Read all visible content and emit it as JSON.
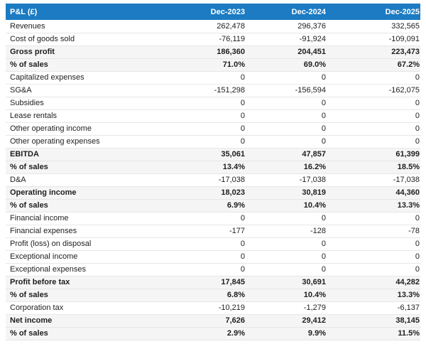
{
  "colors": {
    "header_bg": "#1c7bc2",
    "header_text": "#ffffff",
    "total_row_bg": "#f5f5f5",
    "row_border": "#e7e7e7",
    "text": "#1e1e1e"
  },
  "table": {
    "header": {
      "label": "P&L (£)",
      "columns": [
        "Dec-2023",
        "Dec-2024",
        "Dec-2025"
      ]
    },
    "rows": [
      {
        "label": "Revenues",
        "values": [
          "262,478",
          "296,376",
          "332,565"
        ],
        "style": "normal"
      },
      {
        "label": "Cost of goods sold",
        "values": [
          "-76,119",
          "-91,924",
          "-109,091"
        ],
        "style": "normal"
      },
      {
        "label": "Gross profit",
        "values": [
          "186,360",
          "204,451",
          "223,473"
        ],
        "style": "total"
      },
      {
        "label": "% of sales",
        "values": [
          "71.0%",
          "69.0%",
          "67.2%"
        ],
        "style": "total"
      },
      {
        "label": "Capitalized expenses",
        "values": [
          "0",
          "0",
          "0"
        ],
        "style": "normal"
      },
      {
        "label": "SG&A",
        "values": [
          "-151,298",
          "-156,594",
          "-162,075"
        ],
        "style": "normal"
      },
      {
        "label": "Subsidies",
        "values": [
          "0",
          "0",
          "0"
        ],
        "style": "normal"
      },
      {
        "label": "Lease rentals",
        "values": [
          "0",
          "0",
          "0"
        ],
        "style": "normal"
      },
      {
        "label": "Other operating income",
        "values": [
          "0",
          "0",
          "0"
        ],
        "style": "normal"
      },
      {
        "label": "Other operating expenses",
        "values": [
          "0",
          "0",
          "0"
        ],
        "style": "normal"
      },
      {
        "label": "EBITDA",
        "values": [
          "35,061",
          "47,857",
          "61,399"
        ],
        "style": "total"
      },
      {
        "label": "% of sales",
        "values": [
          "13.4%",
          "16.2%",
          "18.5%"
        ],
        "style": "total"
      },
      {
        "label": "D&A",
        "values": [
          "-17,038",
          "-17,038",
          "-17,038"
        ],
        "style": "normal"
      },
      {
        "label": "Operating income",
        "values": [
          "18,023",
          "30,819",
          "44,360"
        ],
        "style": "total"
      },
      {
        "label": "% of sales",
        "values": [
          "6.9%",
          "10.4%",
          "13.3%"
        ],
        "style": "total"
      },
      {
        "label": "Financial income",
        "values": [
          "0",
          "0",
          "0"
        ],
        "style": "normal"
      },
      {
        "label": "Financial expenses",
        "values": [
          "-177",
          "-128",
          "-78"
        ],
        "style": "normal"
      },
      {
        "label": "Profit (loss) on disposal",
        "values": [
          "0",
          "0",
          "0"
        ],
        "style": "normal"
      },
      {
        "label": "Exceptional income",
        "values": [
          "0",
          "0",
          "0"
        ],
        "style": "normal"
      },
      {
        "label": "Exceptional expenses",
        "values": [
          "0",
          "0",
          "0"
        ],
        "style": "normal"
      },
      {
        "label": "Profit before tax",
        "values": [
          "17,845",
          "30,691",
          "44,282"
        ],
        "style": "total"
      },
      {
        "label": "% of sales",
        "values": [
          "6.8%",
          "10.4%",
          "13.3%"
        ],
        "style": "total"
      },
      {
        "label": "Corporation tax",
        "values": [
          "-10,219",
          "-1,279",
          "-6,137"
        ],
        "style": "normal"
      },
      {
        "label": "Net income",
        "values": [
          "7,626",
          "29,412",
          "38,145"
        ],
        "style": "total"
      },
      {
        "label": "% of sales",
        "values": [
          "2.9%",
          "9.9%",
          "11.5%"
        ],
        "style": "total"
      }
    ]
  },
  "chart_data": {
    "type": "table",
    "title": "P&L (£)",
    "columns": [
      "Dec-2023",
      "Dec-2024",
      "Dec-2025"
    ],
    "rows": [
      {
        "label": "Revenues",
        "values": [
          262478,
          296376,
          332565
        ]
      },
      {
        "label": "Cost of goods sold",
        "values": [
          -76119,
          -91924,
          -109091
        ]
      },
      {
        "label": "Gross profit",
        "values": [
          186360,
          204451,
          223473
        ]
      },
      {
        "label": "% of sales",
        "values": [
          "71.0%",
          "69.0%",
          "67.2%"
        ]
      },
      {
        "label": "Capitalized expenses",
        "values": [
          0,
          0,
          0
        ]
      },
      {
        "label": "SG&A",
        "values": [
          -151298,
          -156594,
          -162075
        ]
      },
      {
        "label": "Subsidies",
        "values": [
          0,
          0,
          0
        ]
      },
      {
        "label": "Lease rentals",
        "values": [
          0,
          0,
          0
        ]
      },
      {
        "label": "Other operating income",
        "values": [
          0,
          0,
          0
        ]
      },
      {
        "label": "Other operating expenses",
        "values": [
          0,
          0,
          0
        ]
      },
      {
        "label": "EBITDA",
        "values": [
          35061,
          47857,
          61399
        ]
      },
      {
        "label": "% of sales",
        "values": [
          "13.4%",
          "16.2%",
          "18.5%"
        ]
      },
      {
        "label": "D&A",
        "values": [
          -17038,
          -17038,
          -17038
        ]
      },
      {
        "label": "Operating income",
        "values": [
          18023,
          30819,
          44360
        ]
      },
      {
        "label": "% of sales",
        "values": [
          "6.9%",
          "10.4%",
          "13.3%"
        ]
      },
      {
        "label": "Financial income",
        "values": [
          0,
          0,
          0
        ]
      },
      {
        "label": "Financial expenses",
        "values": [
          -177,
          -128,
          -78
        ]
      },
      {
        "label": "Profit (loss) on disposal",
        "values": [
          0,
          0,
          0
        ]
      },
      {
        "label": "Exceptional income",
        "values": [
          0,
          0,
          0
        ]
      },
      {
        "label": "Exceptional expenses",
        "values": [
          0,
          0,
          0
        ]
      },
      {
        "label": "Profit before tax",
        "values": [
          17845,
          30691,
          44282
        ]
      },
      {
        "label": "% of sales",
        "values": [
          "6.8%",
          "10.4%",
          "13.3%"
        ]
      },
      {
        "label": "Corporation tax",
        "values": [
          -10219,
          -1279,
          -6137
        ]
      },
      {
        "label": "Net income",
        "values": [
          7626,
          29412,
          38145
        ]
      },
      {
        "label": "% of sales",
        "values": [
          "2.9%",
          "9.9%",
          "11.5%"
        ]
      }
    ]
  }
}
